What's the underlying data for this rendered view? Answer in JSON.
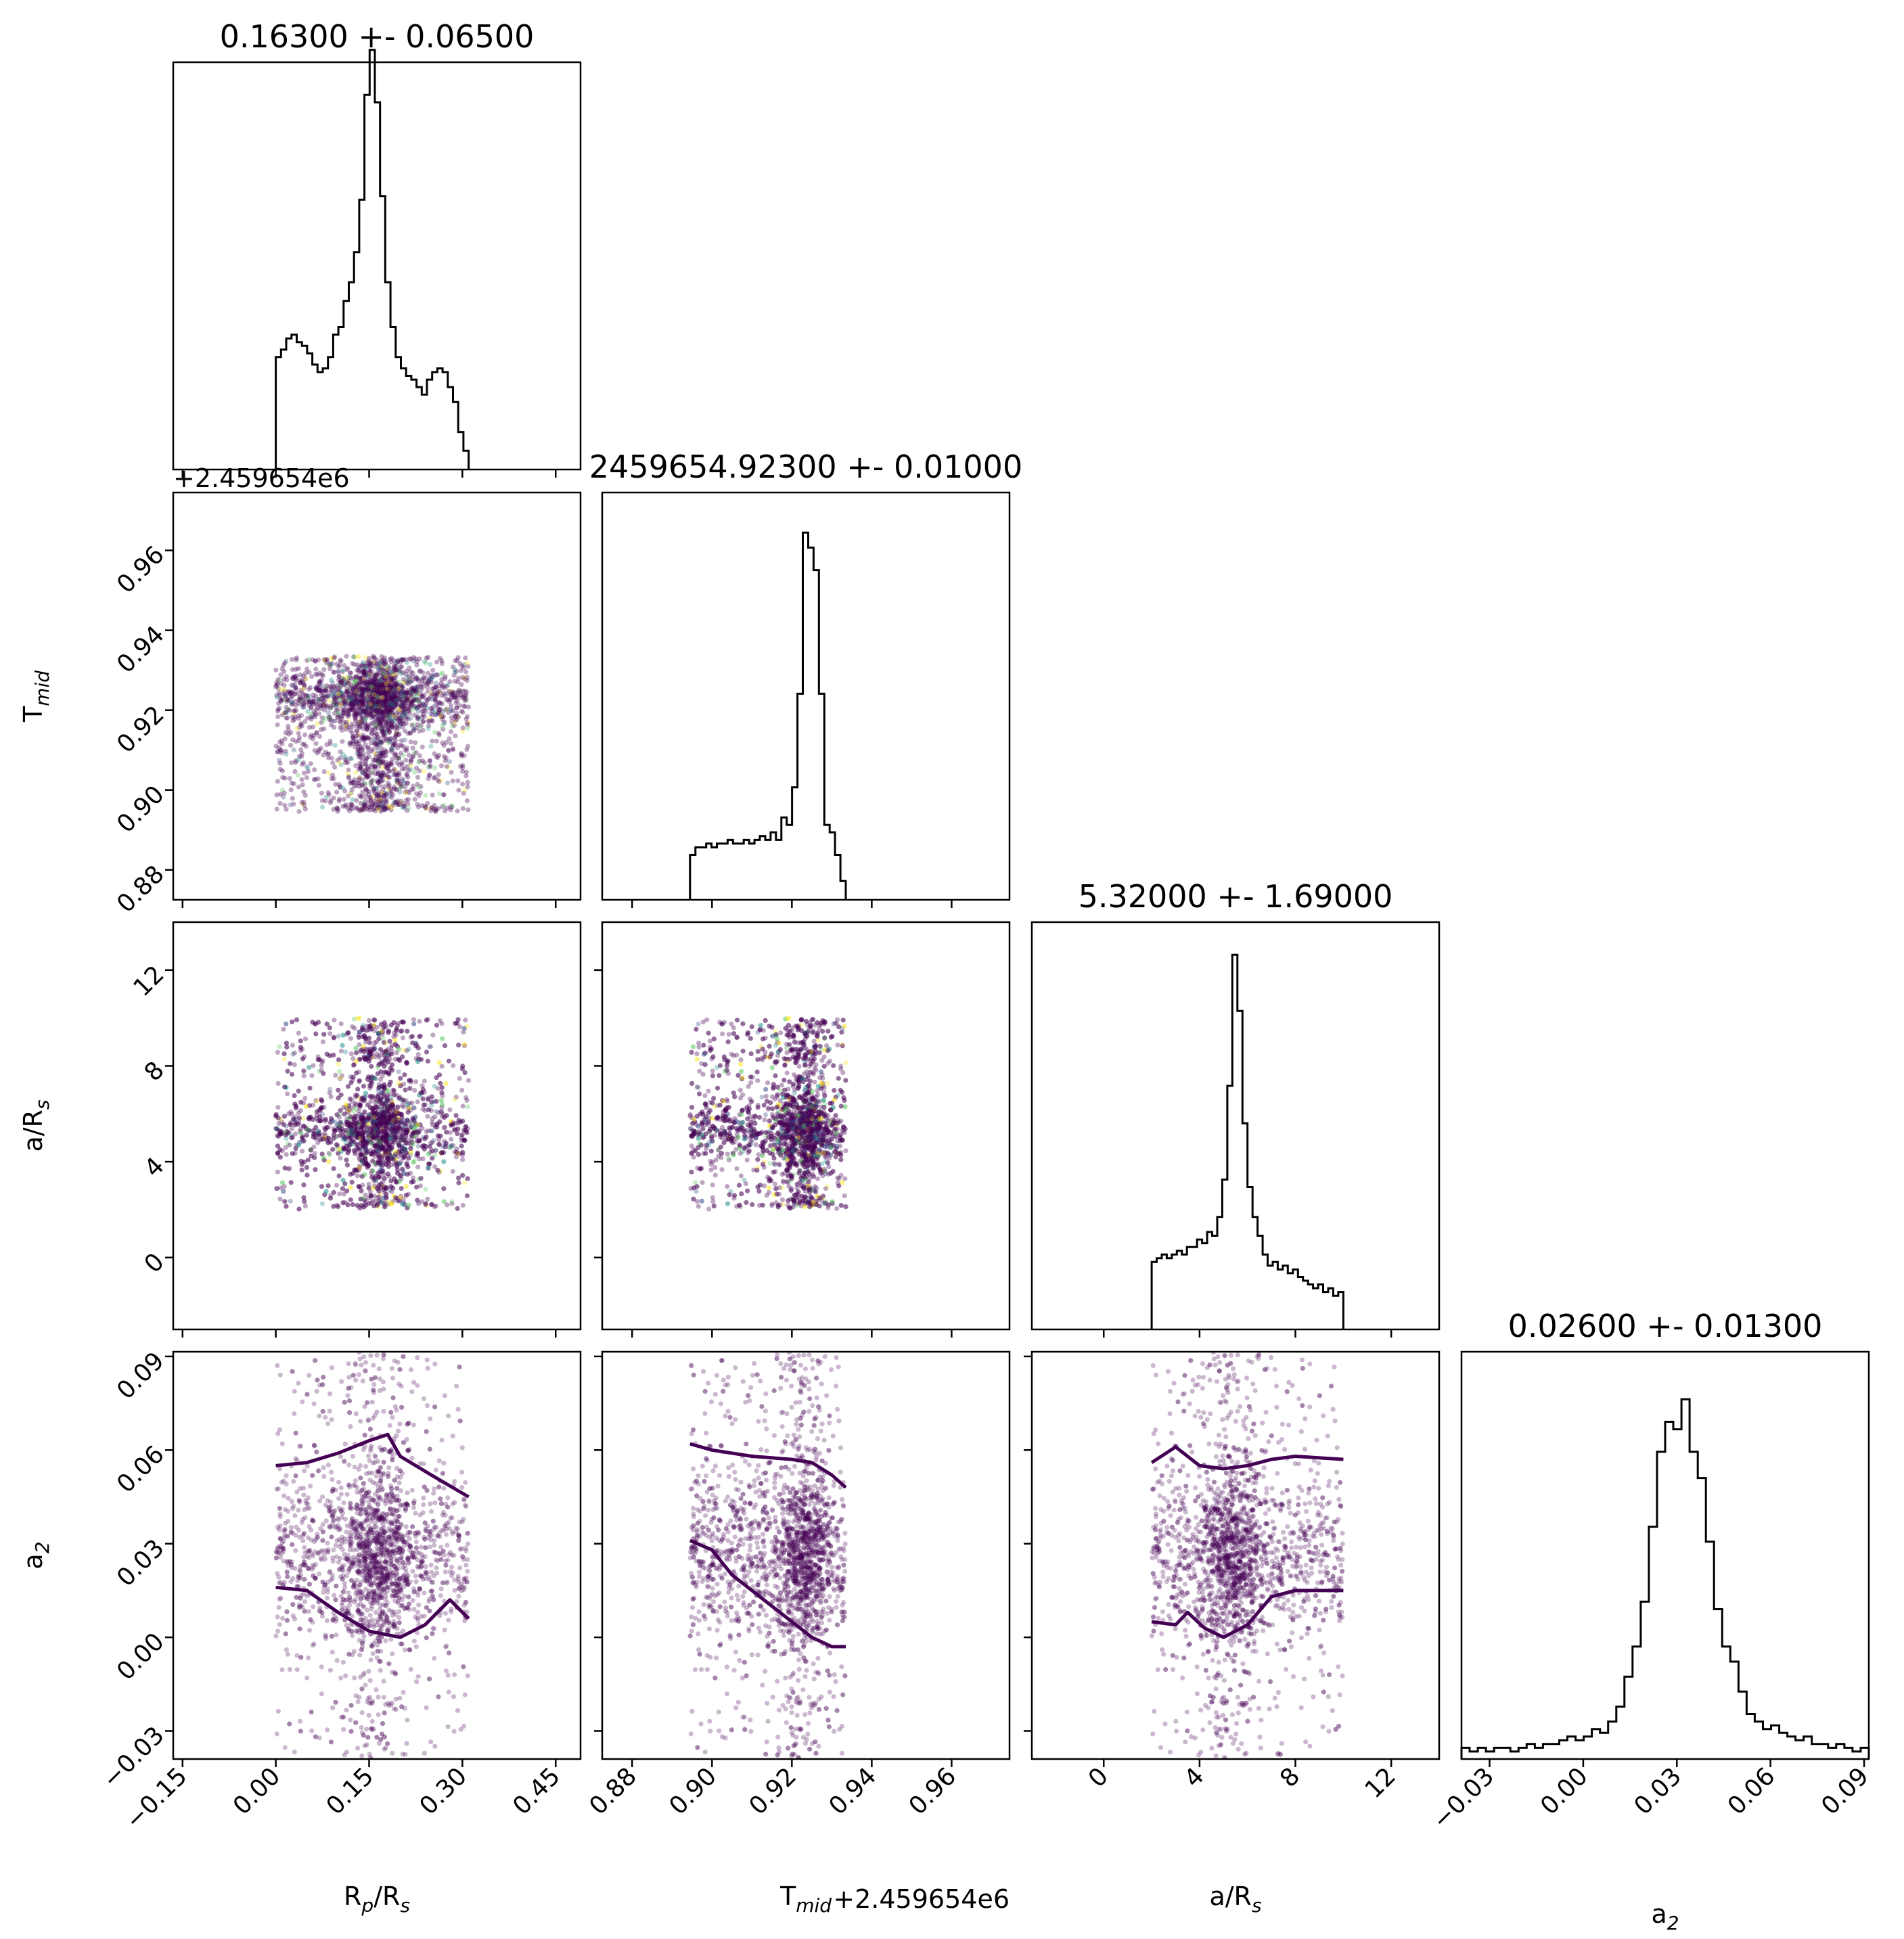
{
  "chart_data": {
    "type": "corner",
    "titles": [
      "0.16300 +- 0.06500",
      "2459654.92300 +- 0.01000",
      "5.32000 +- 1.69000",
      "0.02600 +- 0.01300"
    ],
    "params": [
      {
        "name": "Rp/Rs",
        "label_main": "R",
        "label_sub": "p",
        "label_mid": "/R",
        "label_sub2": "s",
        "range": [
          -0.165,
          0.49
        ],
        "ticks": [
          -0.15,
          0.0,
          0.15,
          0.3,
          0.45
        ],
        "tick_labels": [
          "−0.15",
          "0.00",
          "0.15",
          "0.30",
          "0.45"
        ],
        "sample_range": [
          0.0,
          0.31
        ],
        "center": 0.163,
        "hist": [
          0.3,
          0.32,
          0.35,
          0.36,
          0.34,
          0.33,
          0.31,
          0.28,
          0.26,
          0.27,
          0.3,
          0.36,
          0.38,
          0.45,
          0.5,
          0.58,
          0.72,
          1.0,
          1.12,
          0.98,
          0.73,
          0.5,
          0.38,
          0.3,
          0.27,
          0.25,
          0.24,
          0.22,
          0.2,
          0.24,
          0.26,
          0.27,
          0.26,
          0.22,
          0.18,
          0.1,
          0.05
        ]
      },
      {
        "name": "Tmid",
        "label_main": "T",
        "label_sub": "mid",
        "range": [
          0.8725,
          0.9745
        ],
        "ticks": [
          0.88,
          0.9,
          0.92,
          0.94,
          0.96
        ],
        "tick_labels": [
          "0.88",
          "0.90",
          "0.92",
          "0.94",
          "0.96"
        ],
        "offset": "+2.459654e6",
        "sample_range": [
          0.8945,
          0.9335
        ],
        "center": 0.923,
        "hist": [
          0.12,
          0.14,
          0.14,
          0.15,
          0.14,
          0.15,
          0.15,
          0.16,
          0.15,
          0.15,
          0.16,
          0.15,
          0.16,
          0.17,
          0.16,
          0.18,
          0.16,
          0.22,
          0.2,
          0.3,
          0.55,
          0.98,
          0.94,
          0.88,
          0.55,
          0.2,
          0.18,
          0.12,
          0.05
        ]
      },
      {
        "name": "a/Rs",
        "label_main": "a/R",
        "label_sub": "s",
        "range": [
          -3.0,
          14.0
        ],
        "ticks": [
          0,
          4,
          8,
          12
        ],
        "tick_labels": [
          "0",
          "4",
          "8",
          "12"
        ],
        "sample_range": [
          2.0,
          10.0
        ],
        "center": 5.32,
        "hist": [
          0.18,
          0.19,
          0.2,
          0.19,
          0.2,
          0.21,
          0.2,
          0.22,
          0.22,
          0.24,
          0.23,
          0.26,
          0.25,
          0.3,
          0.4,
          0.65,
          1.0,
          0.85,
          0.55,
          0.38,
          0.3,
          0.25,
          0.2,
          0.17,
          0.18,
          0.16,
          0.17,
          0.15,
          0.16,
          0.14,
          0.13,
          0.12,
          0.11,
          0.12,
          0.1,
          0.11,
          0.09,
          0.1
        ]
      },
      {
        "name": "a2",
        "label_main": "a",
        "label_sub": "2",
        "range": [
          -0.039,
          0.0915
        ],
        "ticks": [
          -0.03,
          0.0,
          0.03,
          0.06,
          0.09
        ],
        "tick_labels": [
          "−0.03",
          "0.00",
          "0.03",
          "0.06",
          "0.09"
        ],
        "sample_range": [
          -0.039,
          0.0915
        ],
        "center": 0.026,
        "hist": [
          0.03,
          0.02,
          0.03,
          0.02,
          0.03,
          0.03,
          0.02,
          0.03,
          0.04,
          0.03,
          0.04,
          0.04,
          0.05,
          0.06,
          0.05,
          0.06,
          0.08,
          0.07,
          0.1,
          0.14,
          0.22,
          0.3,
          0.42,
          0.62,
          0.82,
          0.9,
          0.88,
          0.96,
          0.82,
          0.75,
          0.58,
          0.4,
          0.3,
          0.26,
          0.18,
          0.12,
          0.1,
          0.08,
          0.09,
          0.07,
          0.06,
          0.05,
          0.06,
          0.04,
          0.04,
          0.03,
          0.04,
          0.03,
          0.02,
          0.03
        ]
      }
    ],
    "contours": [
      {
        "row": 3,
        "col": 0,
        "upper": [
          [
            0.0,
            0.055
          ],
          [
            0.05,
            0.056
          ],
          [
            0.1,
            0.059
          ],
          [
            0.15,
            0.063
          ],
          [
            0.18,
            0.065
          ],
          [
            0.2,
            0.058
          ],
          [
            0.25,
            0.052
          ],
          [
            0.31,
            0.045
          ]
        ],
        "lower": [
          [
            0.0,
            0.016
          ],
          [
            0.05,
            0.015
          ],
          [
            0.1,
            0.008
          ],
          [
            0.15,
            0.002
          ],
          [
            0.2,
            0.0
          ],
          [
            0.24,
            0.004
          ],
          [
            0.28,
            0.012
          ],
          [
            0.31,
            0.006
          ]
        ]
      },
      {
        "row": 3,
        "col": 1,
        "upper": [
          [
            0.8945,
            0.062
          ],
          [
            0.9,
            0.06
          ],
          [
            0.91,
            0.058
          ],
          [
            0.92,
            0.057
          ],
          [
            0.925,
            0.056
          ],
          [
            0.93,
            0.052
          ],
          [
            0.9335,
            0.048
          ]
        ],
        "lower": [
          [
            0.8945,
            0.031
          ],
          [
            0.9,
            0.028
          ],
          [
            0.905,
            0.02
          ],
          [
            0.91,
            0.015
          ],
          [
            0.915,
            0.01
          ],
          [
            0.92,
            0.005
          ],
          [
            0.925,
            0.0
          ],
          [
            0.93,
            -0.003
          ],
          [
            0.9335,
            -0.003
          ]
        ]
      },
      {
        "row": 3,
        "col": 2,
        "upper": [
          [
            2.0,
            0.056
          ],
          [
            3.0,
            0.061
          ],
          [
            4.0,
            0.055
          ],
          [
            5.0,
            0.054
          ],
          [
            6.0,
            0.055
          ],
          [
            7.0,
            0.057
          ],
          [
            8.0,
            0.058
          ],
          [
            10.0,
            0.057
          ]
        ],
        "lower": [
          [
            2.0,
            0.005
          ],
          [
            3.0,
            0.004
          ],
          [
            3.5,
            0.008
          ],
          [
            4.2,
            0.003
          ],
          [
            5.0,
            0.0
          ],
          [
            6.0,
            0.004
          ],
          [
            7.0,
            0.013
          ],
          [
            8.0,
            0.015
          ],
          [
            10.0,
            0.015
          ]
        ]
      }
    ],
    "colors": {
      "scatter": "#440154",
      "viridis": [
        "#440154",
        "#3b528b",
        "#21918c",
        "#5ec962",
        "#fde725"
      ],
      "line": "#000000"
    }
  }
}
